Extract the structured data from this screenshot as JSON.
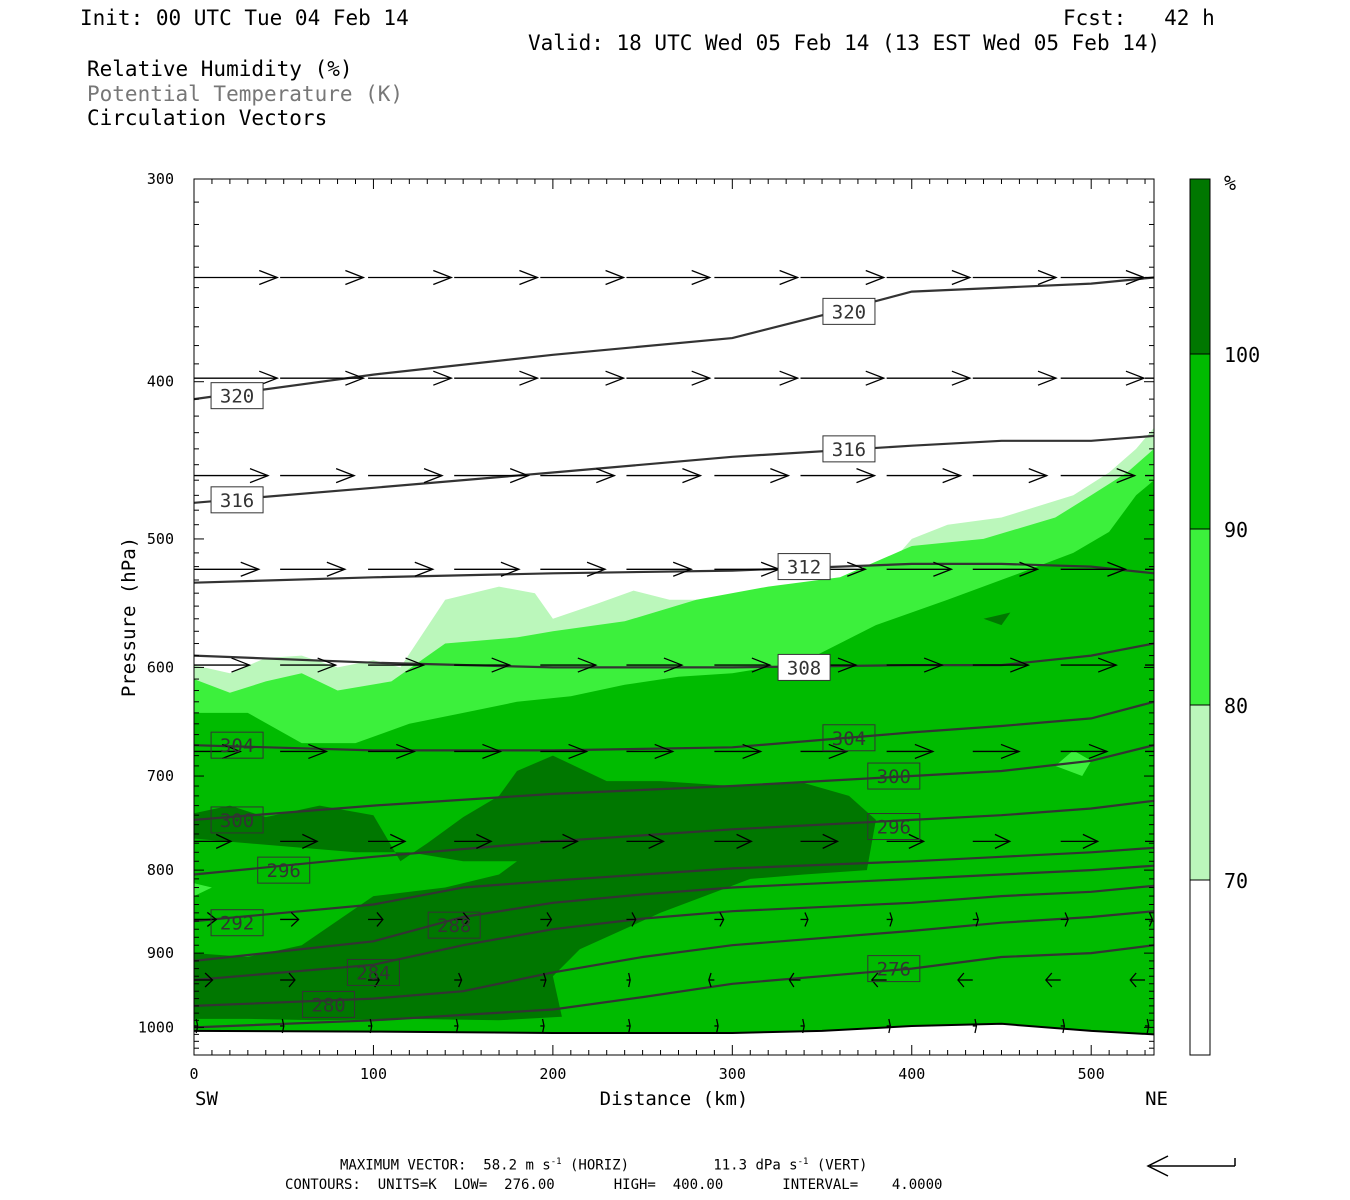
{
  "header": {
    "init": "Init: 00 UTC Tue 04 Feb 14",
    "fcst": "Fcst:   42 h",
    "valid": "Valid: 18 UTC Wed 05 Feb 14 (13 EST Wed 05 Feb 14)"
  },
  "legend_lines": [
    "Relative Humidity (%)",
    "Potential Temperature (K)",
    "Circulation Vectors"
  ],
  "footer": {
    "max_vector_label": "MAXIMUM VECTOR:",
    "horiz_value": "58.2 m s",
    "horiz_unit_exp": "-1",
    "horiz_tag": " (HORIZ)",
    "vert_value": "11.3 dPa s",
    "vert_unit_exp": "-1",
    "vert_tag": " (VERT)",
    "contours_line": "CONTOURS:  UNITS=K  LOW=  276.00       HIGH=  400.00       INTERVAL=    4.0000"
  },
  "colors": {
    "rh_70_80": "#bbf7bb",
    "rh_80_90": "#3cf03c",
    "rh_90_100": "#00bb00",
    "rh_100": "#007700",
    "theta_line": "#333333",
    "vector": "#000000"
  },
  "chart_data": {
    "type": "cross-section",
    "title": "",
    "xlabel": "Distance (km)",
    "ylabel": "Pressure (hPa)",
    "xlim": [
      0,
      535
    ],
    "ylim": [
      1040,
      300
    ],
    "y_log": true,
    "x_ticks": [
      0,
      100,
      200,
      300,
      400,
      500
    ],
    "y_ticks": [
      300,
      400,
      500,
      600,
      700,
      800,
      900,
      1000
    ],
    "x_end_labels": {
      "left": "SW",
      "right": "NE"
    },
    "colorbar": {
      "unit": "%",
      "levels": [
        70,
        80,
        90,
        100
      ],
      "level_labels": [
        "70",
        "80",
        "90",
        "100"
      ]
    },
    "rh_regions": [
      {
        "level": 70,
        "points": [
          [
            0,
            598
          ],
          [
            20,
            605
          ],
          [
            40,
            592
          ],
          [
            60,
            590
          ],
          [
            80,
            600
          ],
          [
            100,
            594
          ],
          [
            115,
            600
          ],
          [
            140,
            545
          ],
          [
            170,
            535
          ],
          [
            190,
            540
          ],
          [
            200,
            560
          ],
          [
            225,
            548
          ],
          [
            245,
            538
          ],
          [
            265,
            545
          ],
          [
            295,
            545
          ],
          [
            340,
            545
          ],
          [
            380,
            530
          ],
          [
            400,
            500
          ],
          [
            420,
            490
          ],
          [
            450,
            485
          ],
          [
            490,
            470
          ],
          [
            510,
            455
          ],
          [
            525,
            440
          ],
          [
            535,
            427
          ],
          [
            535,
            1040
          ],
          [
            0,
            1040
          ]
        ]
      },
      {
        "level": 80,
        "points": [
          [
            0,
            610
          ],
          [
            20,
            622
          ],
          [
            40,
            612
          ],
          [
            60,
            605
          ],
          [
            80,
            620
          ],
          [
            110,
            612
          ],
          [
            140,
            580
          ],
          [
            180,
            575
          ],
          [
            200,
            570
          ],
          [
            240,
            562
          ],
          [
            280,
            545
          ],
          [
            320,
            535
          ],
          [
            360,
            528
          ],
          [
            400,
            505
          ],
          [
            440,
            500
          ],
          [
            480,
            485
          ],
          [
            500,
            470
          ],
          [
            520,
            455
          ],
          [
            535,
            440
          ],
          [
            535,
            1040
          ],
          [
            0,
            1040
          ]
        ]
      },
      {
        "level": 90,
        "points": [
          [
            0,
            640
          ],
          [
            30,
            640
          ],
          [
            60,
            668
          ],
          [
            90,
            668
          ],
          [
            120,
            650
          ],
          [
            150,
            640
          ],
          [
            180,
            630
          ],
          [
            210,
            625
          ],
          [
            240,
            615
          ],
          [
            270,
            608
          ],
          [
            300,
            605
          ],
          [
            340,
            595
          ],
          [
            380,
            565
          ],
          [
            420,
            545
          ],
          [
            460,
            525
          ],
          [
            490,
            510
          ],
          [
            510,
            495
          ],
          [
            525,
            470
          ],
          [
            535,
            460
          ],
          [
            535,
            1040
          ],
          [
            0,
            1040
          ]
        ]
      },
      {
        "level": 100,
        "points": [
          [
            0,
            738
          ],
          [
            20,
            730
          ],
          [
            40,
            742
          ],
          [
            70,
            730
          ],
          [
            100,
            740
          ],
          [
            115,
            790
          ],
          [
            130,
            770
          ],
          [
            150,
            742
          ],
          [
            170,
            720
          ],
          [
            180,
            695
          ],
          [
            200,
            680
          ],
          [
            230,
            705
          ],
          [
            260,
            705
          ],
          [
            300,
            710
          ],
          [
            340,
            707
          ],
          [
            365,
            720
          ],
          [
            380,
            745
          ],
          [
            375,
            800
          ],
          [
            340,
            805
          ],
          [
            310,
            810
          ],
          [
            260,
            850
          ],
          [
            215,
            895
          ],
          [
            200,
            930
          ],
          [
            205,
            985
          ],
          [
            170,
            990
          ],
          [
            120,
            988
          ],
          [
            70,
            990
          ],
          [
            30,
            988
          ],
          [
            0,
            988
          ],
          [
            0,
            900
          ],
          [
            30,
            905
          ],
          [
            60,
            890
          ],
          [
            100,
            830
          ],
          [
            140,
            820
          ],
          [
            170,
            805
          ],
          [
            180,
            790
          ],
          [
            150,
            790
          ],
          [
            120,
            780
          ],
          [
            90,
            780
          ],
          [
            60,
            775
          ],
          [
            30,
            770
          ],
          [
            0,
            765
          ]
        ]
      },
      {
        "level": 100,
        "points": [
          [
            440,
            560
          ],
          [
            455,
            555
          ],
          [
            450,
            565
          ]
        ]
      }
    ],
    "rh_islands": [
      {
        "level": 80,
        "points": [
          [
            480,
            690
          ],
          [
            490,
            675
          ],
          [
            500,
            685
          ],
          [
            495,
            700
          ]
        ]
      },
      {
        "level": 80,
        "points": [
          [
            0,
            815
          ],
          [
            10,
            820
          ],
          [
            0,
            830
          ]
        ]
      }
    ],
    "isentropes": [
      {
        "value": 320,
        "x": [
          0,
          100,
          200,
          300,
          350,
          400,
          450,
          500,
          535
        ],
        "y": [
          410,
          396,
          385,
          376,
          364,
          352,
          350,
          348,
          345
        ],
        "label_positions": [
          [
            24,
            408
          ],
          [
            365,
            362
          ]
        ]
      },
      {
        "value": 316,
        "x": [
          0,
          100,
          200,
          300,
          400,
          450,
          500,
          535
        ],
        "y": [
          475,
          465,
          455,
          445,
          438,
          435,
          435,
          432
        ],
        "label_positions": [
          [
            24,
            473
          ],
          [
            365,
            440
          ]
        ]
      },
      {
        "value": 312,
        "x": [
          0,
          100,
          200,
          300,
          400,
          450,
          500,
          535
        ],
        "y": [
          532,
          528,
          525,
          523,
          518,
          518,
          520,
          525
        ],
        "label_positions": [
          [
            340,
            520
          ]
        ]
      },
      {
        "value": 308,
        "x": [
          0,
          100,
          200,
          300,
          400,
          450,
          500,
          535
        ],
        "y": [
          590,
          596,
          600,
          600,
          598,
          598,
          590,
          580
        ],
        "label_positions": [
          [
            340,
            600
          ]
        ]
      },
      {
        "value": 304,
        "x": [
          0,
          100,
          200,
          300,
          400,
          450,
          500,
          535
        ],
        "y": [
          670,
          675,
          675,
          672,
          658,
          652,
          645,
          630
        ],
        "label_positions": [
          [
            24,
            670
          ],
          [
            365,
            663
          ]
        ]
      },
      {
        "value": 300,
        "x": [
          0,
          100,
          200,
          300,
          400,
          450,
          500,
          535
        ],
        "y": [
          745,
          730,
          718,
          710,
          700,
          695,
          685,
          670
        ],
        "label_positions": [
          [
            24,
            745
          ],
          [
            390,
            700
          ]
        ]
      },
      {
        "value": 296,
        "x": [
          0,
          100,
          200,
          300,
          400,
          450,
          500,
          535
        ],
        "y": [
          805,
          785,
          768,
          755,
          745,
          740,
          733,
          725
        ],
        "label_positions": [
          [
            50,
            800
          ],
          [
            390,
            752
          ]
        ]
      },
      {
        "value": 292,
        "x": [
          0,
          100,
          150,
          200,
          300,
          400,
          450,
          500,
          535
        ],
        "y": [
          860,
          840,
          820,
          812,
          798,
          790,
          785,
          780,
          775
        ],
        "label_positions": [
          [
            24,
            862
          ]
        ]
      },
      {
        "value": 288,
        "x": [
          0,
          100,
          150,
          200,
          250,
          300,
          400,
          450,
          500,
          535
        ],
        "y": [
          910,
          885,
          855,
          838,
          828,
          820,
          810,
          805,
          800,
          795
        ],
        "label_positions": [
          [
            145,
            865
          ]
        ]
      },
      {
        "value": 284,
        "x": [
          0,
          100,
          150,
          200,
          250,
          300,
          400,
          450,
          500,
          535
        ],
        "y": [
          935,
          915,
          890,
          870,
          857,
          848,
          838,
          830,
          825,
          818
        ],
        "label_positions": [
          [
            100,
            925
          ]
        ]
      },
      {
        "value": 280,
        "x": [
          0,
          100,
          150,
          200,
          250,
          300,
          400,
          450,
          500,
          535
        ],
        "y": [
          970,
          960,
          950,
          925,
          905,
          890,
          872,
          862,
          855,
          848
        ],
        "label_positions": [
          [
            75,
            968
          ]
        ]
      },
      {
        "value": 276,
        "x": [
          0,
          100,
          200,
          250,
          300,
          400,
          450,
          500,
          535
        ],
        "y": [
          1000,
          990,
          975,
          958,
          940,
          920,
          905,
          900,
          890
        ],
        "label_positions": [
          [
            390,
            920
          ]
        ]
      }
    ],
    "surface_line": {
      "x": [
        0,
        100,
        200,
        300,
        350,
        400,
        450,
        500,
        535
      ],
      "y": [
        1005,
        1006,
        1008,
        1008,
        1005,
        998,
        995,
        1005,
        1010
      ]
    },
    "vectors": {
      "rows": [
        {
          "p": 345,
          "x": [
            0,
            48,
            97,
            145,
            193,
            241,
            290,
            338,
            386,
            434,
            483,
            530
          ],
          "u": [
            45,
            45,
            45,
            45,
            45,
            45,
            45,
            45,
            45,
            45,
            45,
            45
          ]
        },
        {
          "p": 398,
          "x": [
            0,
            48,
            97,
            145,
            193,
            241,
            290,
            338,
            386,
            434,
            483,
            530
          ],
          "u": [
            45,
            45,
            45,
            45,
            45,
            45,
            45,
            45,
            45,
            45,
            45,
            45
          ]
        },
        {
          "p": 457,
          "x": [
            0,
            48,
            97,
            145,
            193,
            241,
            290,
            338,
            386,
            434,
            483,
            530
          ],
          "u": [
            40,
            40,
            40,
            40,
            40,
            40,
            40,
            40,
            40,
            40,
            40,
            40
          ]
        },
        {
          "p": 522,
          "x": [
            0,
            48,
            97,
            145,
            193,
            241,
            290,
            338,
            386,
            434,
            483,
            530
          ],
          "u": [
            35,
            35,
            35,
            35,
            35,
            35,
            35,
            35,
            35,
            35,
            35,
            35
          ]
        },
        {
          "p": 598,
          "x": [
            0,
            48,
            97,
            145,
            193,
            241,
            290,
            338,
            386,
            434,
            483,
            530
          ],
          "u": [
            30,
            30,
            30,
            30,
            30,
            30,
            30,
            30,
            30,
            30,
            30,
            30
          ]
        },
        {
          "p": 676,
          "x": [
            0,
            48,
            97,
            145,
            193,
            241,
            290,
            338,
            386,
            434,
            483,
            530
          ],
          "u": [
            25,
            25,
            25,
            25,
            25,
            25,
            25,
            25,
            25,
            25,
            25,
            25
          ]
        },
        {
          "p": 768,
          "x": [
            0,
            48,
            97,
            145,
            193,
            241,
            290,
            338,
            386,
            434,
            483,
            530
          ],
          "u": [
            20,
            20,
            20,
            20,
            20,
            20,
            20,
            20,
            20,
            20,
            20,
            20
          ]
        },
        {
          "p": 858,
          "x": [
            0,
            48,
            97,
            145,
            193,
            241,
            290,
            338,
            386,
            434,
            483,
            530
          ],
          "u": [
            12,
            10,
            8,
            8,
            6,
            5,
            5,
            4,
            3,
            3,
            4,
            4
          ]
        },
        {
          "p": 935,
          "x": [
            0,
            48,
            97,
            145,
            193,
            241,
            290,
            338,
            386,
            434,
            483,
            530
          ],
          "u": [
            10,
            8,
            6,
            4,
            3,
            2,
            -3,
            -6,
            -8,
            -8,
            -8,
            -8
          ]
        },
        {
          "p": 998,
          "x": [
            0,
            48,
            97,
            145,
            193,
            241,
            290,
            338,
            386,
            434,
            483,
            530
          ],
          "u": [
            2,
            2,
            2,
            2,
            2,
            2,
            2,
            2,
            2,
            2,
            2,
            2
          ]
        }
      ]
    }
  }
}
